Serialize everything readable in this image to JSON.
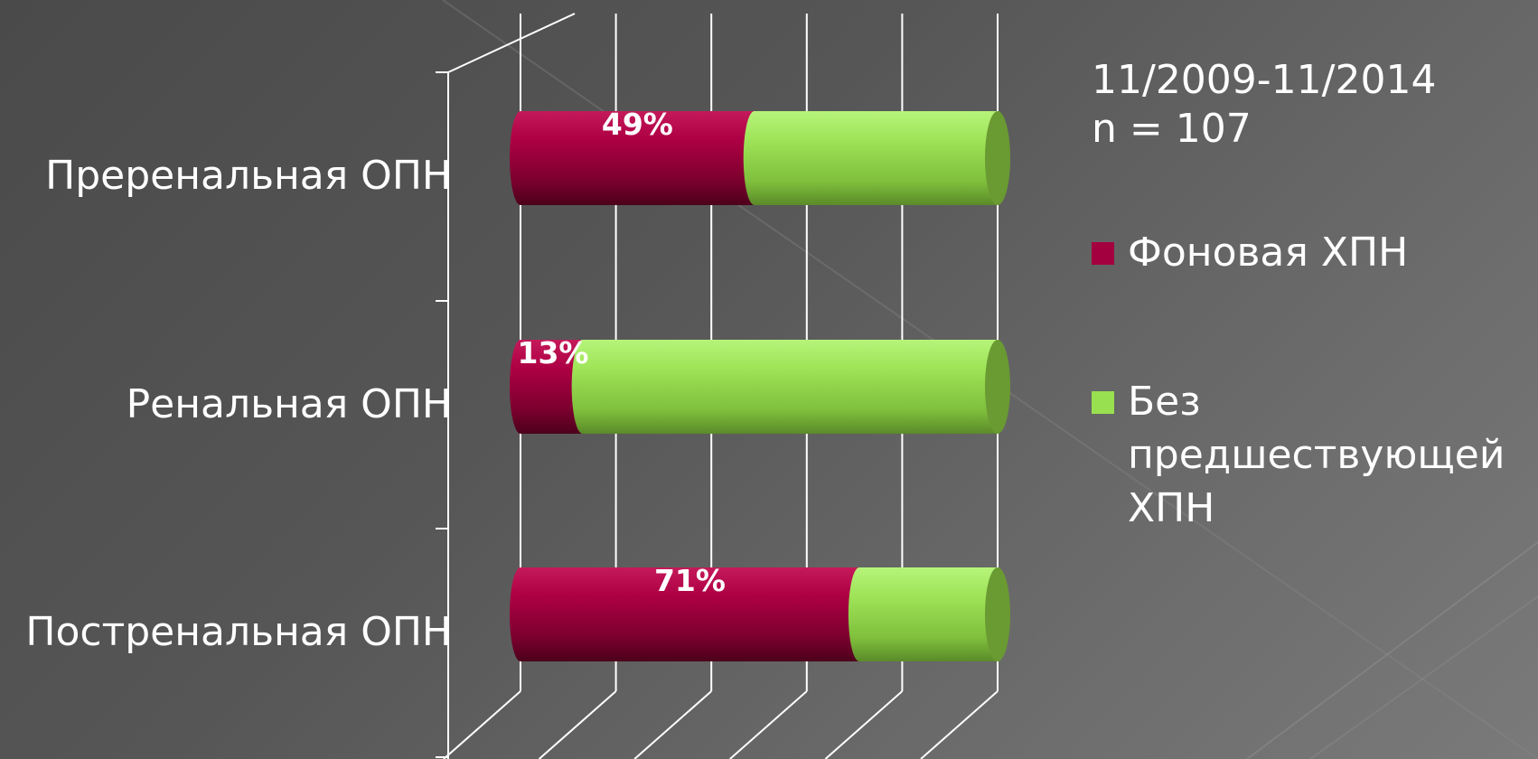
{
  "chart_data": {
    "type": "bar",
    "orientation": "horizontal",
    "stacked": "percent",
    "style": "3d-cylinder",
    "categories": [
      "Преренальная ОПН",
      "Ренальная ОПН",
      "Постренальная ОПН"
    ],
    "series": [
      {
        "name": "Фоновая ХПН",
        "values": [
          49,
          13,
          71
        ],
        "labels": [
          "49%",
          "13%",
          "71%"
        ],
        "color": "#a3003f"
      },
      {
        "name": "Без предшествующей ХПН",
        "values": [
          51,
          87,
          29
        ],
        "color": "#99e050"
      }
    ],
    "xlim": [
      0,
      100
    ],
    "grid": true,
    "legend": "right"
  },
  "meta": {
    "period": "11/2009-11/2014",
    "n": "n = 107"
  },
  "colors": {
    "background": "#5a5a5a",
    "grid_lines": "#ffffff",
    "series_1": "#a3003f",
    "series_2": "#99e050"
  }
}
